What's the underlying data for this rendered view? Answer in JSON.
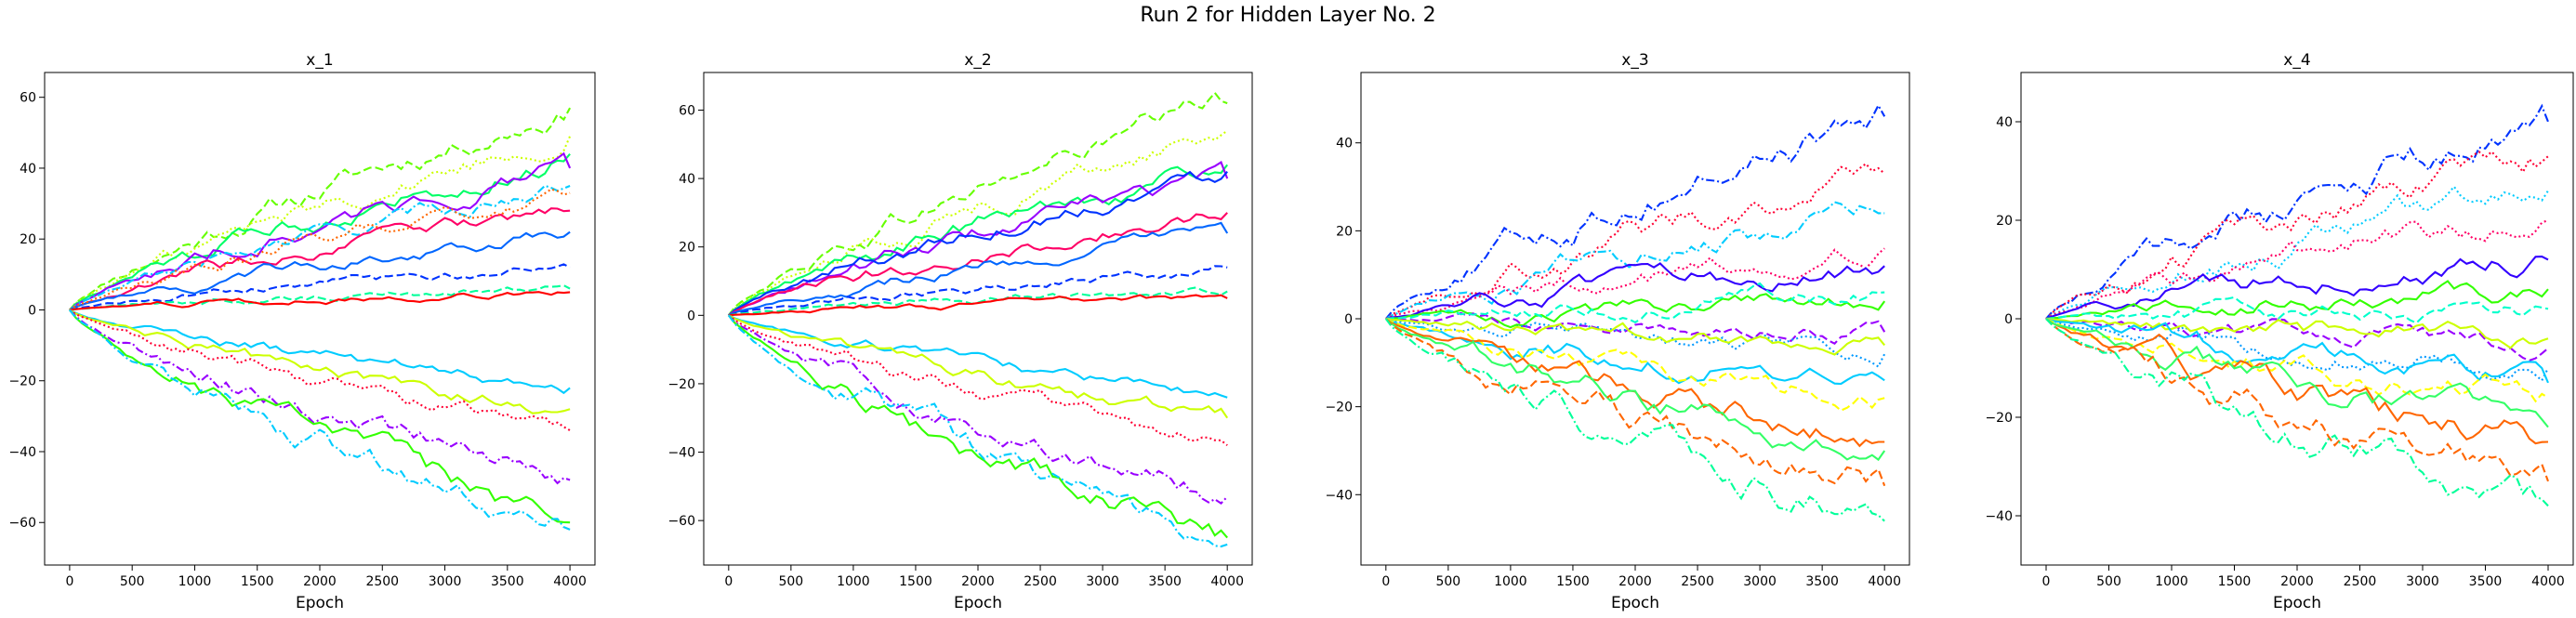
{
  "figure_title": "Run 2 for Hidden Layer No. 2",
  "chart_data": [
    {
      "type": "line",
      "title": "x_1",
      "xlabel": "Epoch",
      "ylabel": "",
      "xlim": [
        -200,
        4200
      ],
      "ylim": [
        -72,
        67
      ],
      "xticks": [
        0,
        500,
        1000,
        1500,
        2000,
        2500,
        3000,
        3500,
        4000
      ],
      "yticks": [
        -60,
        -40,
        -20,
        0,
        20,
        40,
        60
      ],
      "grid": false,
      "legend": "none",
      "x_start": 0,
      "x_step": 50,
      "n_points": 81,
      "series_endpoints": [
        {
          "color": "#66ff00",
          "style": "dashed",
          "end_value": 57
        },
        {
          "color": "#ccff00",
          "style": "dotted",
          "end_value": 49
        },
        {
          "color": "#00ff66",
          "style": "solid",
          "end_value": 44
        },
        {
          "color": "#9900ff",
          "style": "solid",
          "end_value": 40
        },
        {
          "color": "#00ccff",
          "style": "dashdot",
          "end_value": 35
        },
        {
          "color": "#ff0066",
          "style": "solid",
          "end_value": 28
        },
        {
          "color": "#0033ff",
          "style": "dashed",
          "end_value": 12
        },
        {
          "color": "#0066ff",
          "style": "solid",
          "end_value": 22
        },
        {
          "color": "#ff6600",
          "style": "dotted",
          "end_value": 33
        },
        {
          "color": "#00ff99",
          "style": "dashed",
          "end_value": 6
        },
        {
          "color": "#ff0000",
          "style": "solid",
          "end_value": 5
        },
        {
          "color": "#00ccff",
          "style": "solid",
          "end_value": -22
        },
        {
          "color": "#ccff00",
          "style": "solid",
          "end_value": -28
        },
        {
          "color": "#ff0033",
          "style": "dotted",
          "end_value": -34
        },
        {
          "color": "#9900ff",
          "style": "dashdot",
          "end_value": -48
        },
        {
          "color": "#33ff00",
          "style": "solid",
          "end_value": -60
        },
        {
          "color": "#00ccff",
          "style": "dashdot",
          "end_value": -62
        }
      ]
    },
    {
      "type": "line",
      "title": "x_2",
      "xlabel": "Epoch",
      "ylabel": "",
      "xlim": [
        -200,
        4200
      ],
      "ylim": [
        -73,
        71
      ],
      "xticks": [
        0,
        500,
        1000,
        1500,
        2000,
        2500,
        3000,
        3500,
        4000
      ],
      "yticks": [
        -60,
        -40,
        -20,
        0,
        20,
        40,
        60
      ],
      "grid": false,
      "legend": "none",
      "x_start": 0,
      "x_step": 50,
      "n_points": 81,
      "series_endpoints": [
        {
          "color": "#66ff00",
          "style": "dashed",
          "end_value": 62
        },
        {
          "color": "#ccff00",
          "style": "dotted",
          "end_value": 54
        },
        {
          "color": "#00ff66",
          "style": "solid",
          "end_value": 44
        },
        {
          "color": "#9900ff",
          "style": "solid",
          "end_value": 40
        },
        {
          "color": "#0033ff",
          "style": "solid",
          "end_value": 42
        },
        {
          "color": "#ff0066",
          "style": "solid",
          "end_value": 30
        },
        {
          "color": "#0066ff",
          "style": "solid",
          "end_value": 24
        },
        {
          "color": "#0033ff",
          "style": "dashed",
          "end_value": 14
        },
        {
          "color": "#00ff99",
          "style": "dashed",
          "end_value": 7
        },
        {
          "color": "#ff0000",
          "style": "solid",
          "end_value": 5
        },
        {
          "color": "#00ccff",
          "style": "solid",
          "end_value": -24
        },
        {
          "color": "#ccff00",
          "style": "solid",
          "end_value": -30
        },
        {
          "color": "#ff0033",
          "style": "dotted",
          "end_value": -38
        },
        {
          "color": "#9900ff",
          "style": "dashdot",
          "end_value": -53
        },
        {
          "color": "#33ff00",
          "style": "solid",
          "end_value": -65
        },
        {
          "color": "#00ccff",
          "style": "dashdot",
          "end_value": -67
        }
      ]
    },
    {
      "type": "line",
      "title": "x_3",
      "xlabel": "Epoch",
      "ylabel": "",
      "xlim": [
        -200,
        4200
      ],
      "ylim": [
        -56,
        56
      ],
      "xticks": [
        0,
        500,
        1000,
        1500,
        2000,
        2500,
        3000,
        3500,
        4000
      ],
      "yticks": [
        -40,
        -20,
        0,
        20,
        40
      ],
      "grid": false,
      "legend": "none",
      "x_start": 0,
      "x_step": 50,
      "n_points": 81,
      "series_endpoints": [
        {
          "color": "#0033ff",
          "style": "dashdot",
          "end_value": 46
        },
        {
          "color": "#ff0033",
          "style": "dotted",
          "end_value": 33
        },
        {
          "color": "#00ccff",
          "style": "dashdot",
          "end_value": 24
        },
        {
          "color": "#ff0066",
          "style": "dotted",
          "end_value": 16
        },
        {
          "color": "#3300ff",
          "style": "solid",
          "end_value": 12
        },
        {
          "color": "#33ff00",
          "style": "solid",
          "end_value": 4
        },
        {
          "color": "#9900ff",
          "style": "dashed",
          "end_value": -3
        },
        {
          "color": "#00ffcc",
          "style": "dashed",
          "end_value": 6
        },
        {
          "color": "#0099ff",
          "style": "dotted",
          "end_value": -8
        },
        {
          "color": "#ccff00",
          "style": "solid",
          "end_value": -6
        },
        {
          "color": "#00ccff",
          "style": "solid",
          "end_value": -14
        },
        {
          "color": "#ffff00",
          "style": "dashed",
          "end_value": -18
        },
        {
          "color": "#ff6600",
          "style": "solid",
          "end_value": -28
        },
        {
          "color": "#33ff66",
          "style": "solid",
          "end_value": -30
        },
        {
          "color": "#ff6600",
          "style": "dashed",
          "end_value": -38
        },
        {
          "color": "#00ff99",
          "style": "dashdot",
          "end_value": -46
        }
      ]
    },
    {
      "type": "line",
      "title": "x_4",
      "xlabel": "Epoch",
      "ylabel": "",
      "xlim": [
        -200,
        4200
      ],
      "ylim": [
        -50,
        50
      ],
      "xticks": [
        0,
        500,
        1000,
        1500,
        2000,
        2500,
        3000,
        3500,
        4000
      ],
      "yticks": [
        -40,
        -20,
        0,
        20,
        40
      ],
      "grid": false,
      "legend": "none",
      "x_start": 0,
      "x_step": 50,
      "n_points": 81,
      "series_endpoints": [
        {
          "color": "#0033ff",
          "style": "dashdot",
          "end_value": 40
        },
        {
          "color": "#ff0033",
          "style": "dotted",
          "end_value": 33
        },
        {
          "color": "#00ccff",
          "style": "dotted",
          "end_value": 26
        },
        {
          "color": "#ff0066",
          "style": "dotted",
          "end_value": 20
        },
        {
          "color": "#3300ff",
          "style": "solid",
          "end_value": 12
        },
        {
          "color": "#33ff00",
          "style": "solid",
          "end_value": 6
        },
        {
          "color": "#9900ff",
          "style": "dashed",
          "end_value": -6
        },
        {
          "color": "#00ffcc",
          "style": "dashed",
          "end_value": 2
        },
        {
          "color": "#0099ff",
          "style": "dotted",
          "end_value": -10
        },
        {
          "color": "#ccff00",
          "style": "solid",
          "end_value": -4
        },
        {
          "color": "#00ccff",
          "style": "solid",
          "end_value": -13
        },
        {
          "color": "#ffff00",
          "style": "dashed",
          "end_value": -16
        },
        {
          "color": "#ff6600",
          "style": "solid",
          "end_value": -25
        },
        {
          "color": "#33ff66",
          "style": "solid",
          "end_value": -22
        },
        {
          "color": "#ff6600",
          "style": "dashed",
          "end_value": -33
        },
        {
          "color": "#00ff99",
          "style": "dashdot",
          "end_value": -38
        }
      ]
    }
  ]
}
